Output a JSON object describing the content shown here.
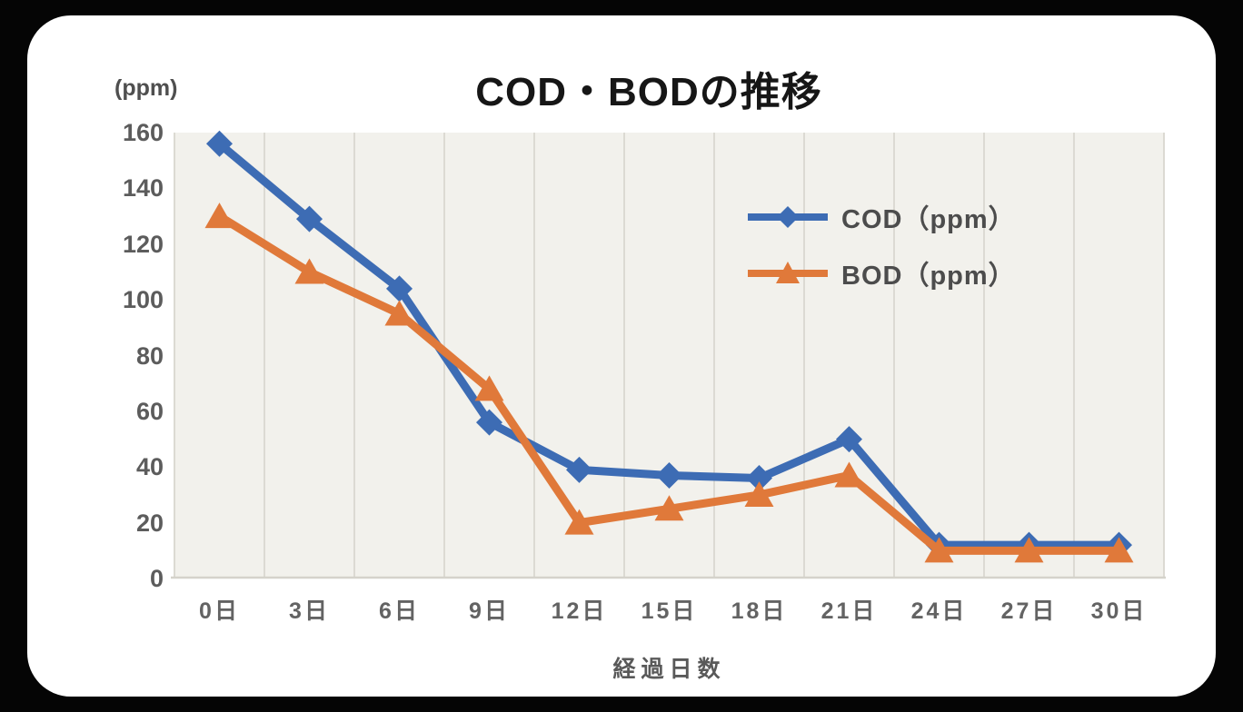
{
  "page": {
    "background_color": "#050505",
    "card_background_color": "#ffffff"
  },
  "chart_data": {
    "type": "line",
    "title": "COD・BODの推移",
    "y_axis_unit_label": "(ppm)",
    "xlabel": "経過日数",
    "categories": [
      "0日",
      "3日",
      "6日",
      "9日",
      "12日",
      "15日",
      "18日",
      "21日",
      "24日",
      "27日",
      "30日"
    ],
    "series": [
      {
        "name": "COD（ppm）",
        "marker": "diamond",
        "color": "#3D6CB4",
        "values": [
          156,
          129,
          104,
          56,
          39,
          37,
          36,
          50,
          12,
          12,
          12
        ]
      },
      {
        "name": "BOD（ppm）",
        "marker": "triangle",
        "color": "#E0793A",
        "values": [
          130,
          110,
          95,
          68,
          20,
          25,
          30,
          37,
          10,
          10,
          10
        ]
      }
    ],
    "ylim": [
      0,
      160
    ],
    "ytick_step": 20,
    "yticks": [
      160,
      140,
      120,
      100,
      80,
      60,
      40,
      20,
      0
    ],
    "grid": "vertical-only",
    "legend_position": "upper-right-inside-plot",
    "plot_background_color": "#F2F1EC",
    "gridline_color": "#DCDAD3",
    "axis_line_color": "#D5D3CB",
    "tick_label_color": "#5C5C5C",
    "title_color": "#161616"
  }
}
